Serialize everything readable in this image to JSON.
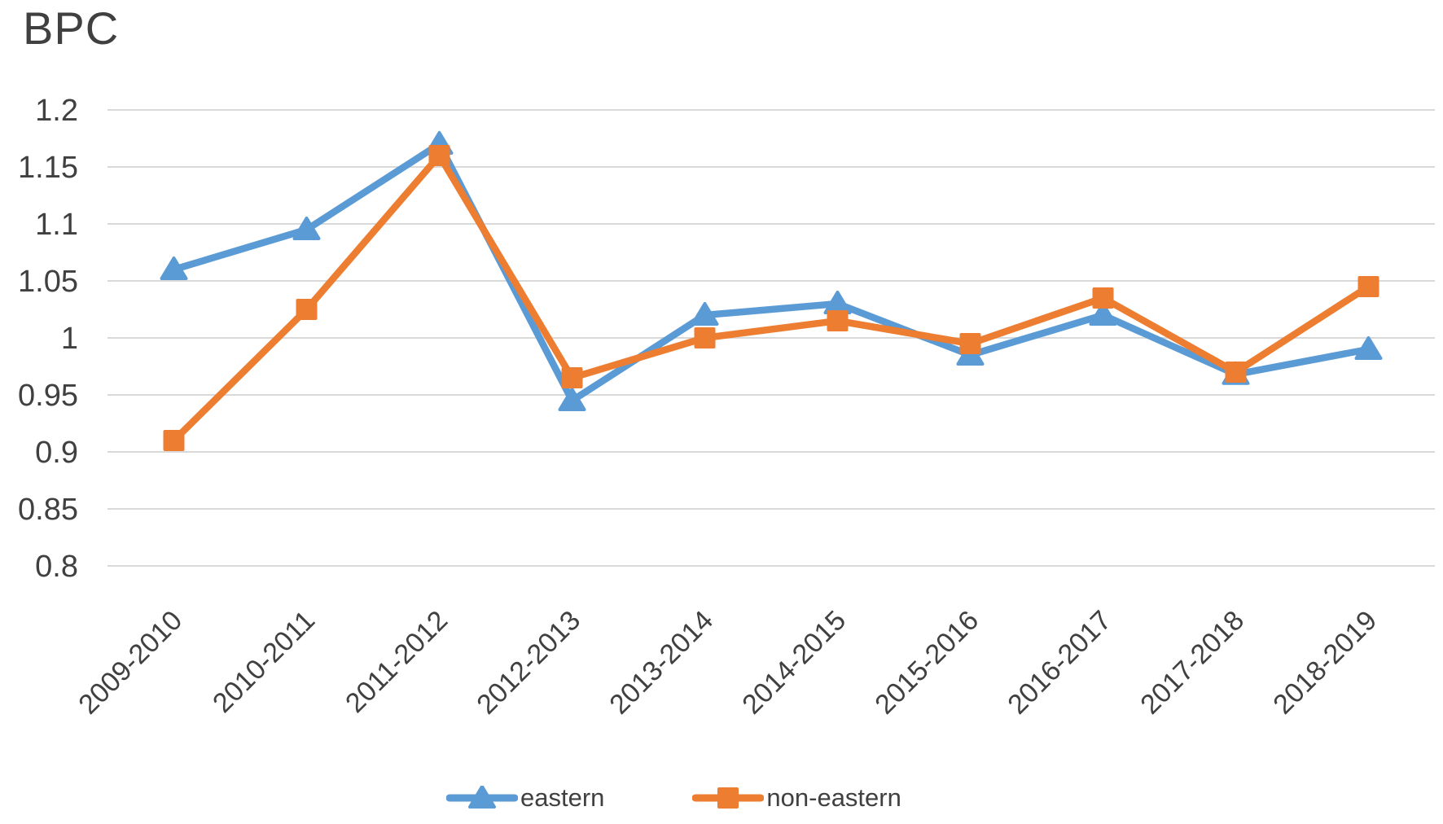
{
  "title": "BPC",
  "chart_data": {
    "type": "line",
    "title": "BPC",
    "categories": [
      "2009-2010",
      "2010-2011",
      "2011-2012",
      "2012-2013",
      "2013-2014",
      "2014-2015",
      "2015-2016",
      "2016-2017",
      "2017-2018",
      "2018-2019"
    ],
    "series": [
      {
        "name": "eastern",
        "color": "#5B9BD5",
        "marker": "triangle",
        "values": [
          1.06,
          1.095,
          1.17,
          0.945,
          1.02,
          1.03,
          0.985,
          1.02,
          0.968,
          0.99
        ]
      },
      {
        "name": "non-eastern",
        "color": "#ED7D31",
        "marker": "square",
        "values": [
          0.91,
          1.025,
          1.16,
          0.965,
          1.0,
          1.015,
          0.995,
          1.035,
          0.97,
          1.045
        ]
      }
    ],
    "xlabel": "",
    "ylabel": "",
    "ylim": [
      0.8,
      1.2
    ],
    "y_tick_labels": [
      "1.2",
      "1.15",
      "1.1",
      "1.05",
      "1",
      "0.95",
      "0.9",
      "0.85",
      "0.8"
    ],
    "y_tick_values": [
      1.2,
      1.15,
      1.1,
      1.05,
      1.0,
      0.95,
      0.9,
      0.85,
      0.8
    ],
    "grid": "horizontal",
    "gridline_color": "#D9D9D9",
    "text_color": "#404040",
    "legend_position": "bottom",
    "x_label_rotation_deg": 45
  }
}
